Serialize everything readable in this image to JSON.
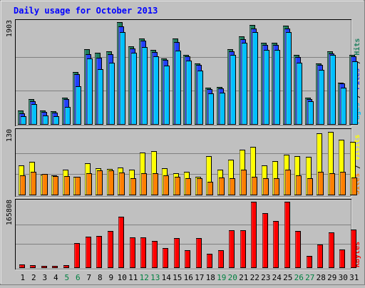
{
  "chart_data": {
    "type": "bar",
    "title": "Daily usage for October 2013",
    "categories": [
      "1",
      "2",
      "3",
      "4",
      "5",
      "6",
      "7",
      "8",
      "9",
      "10",
      "11",
      "12",
      "13",
      "14",
      "15",
      "16",
      "17",
      "18",
      "19",
      "20",
      "21",
      "22",
      "23",
      "24",
      "25",
      "26",
      "27",
      "28",
      "29",
      "30",
      "31"
    ],
    "weekend_days": [
      "5",
      "6",
      "12",
      "13",
      "19",
      "20",
      "26",
      "27"
    ],
    "panels": [
      {
        "id": "traffic",
        "axis_max_label": "1903",
        "max": 1903,
        "right_labels": [
          {
            "text": "Pages",
            "color": "#00c0ff"
          },
          {
            "text": "Files",
            "color": "#2040ff"
          },
          {
            "text": "Hits",
            "color": "#208060"
          }
        ],
        "series": [
          {
            "name": "Hits",
            "color": "#208060",
            "values": [
              270,
              470,
              270,
              250,
              500,
              980,
              1400,
              1340,
              1360,
              1903,
              1450,
              1600,
              1390,
              1230,
              1600,
              1300,
              1130,
              690,
              700,
              1400,
              1640,
              1850,
              1520,
              1520,
              1840,
              1300,
              500,
              1140,
              1360,
              780,
              1290
            ]
          },
          {
            "name": "Files",
            "color": "#2040ff",
            "values": [
              210,
              430,
              240,
              220,
              480,
              940,
              1310,
              1240,
              1310,
              1830,
              1410,
              1560,
              1350,
              1200,
              1530,
              1270,
              1110,
              660,
              670,
              1360,
              1590,
              1790,
              1480,
              1480,
              1790,
              1260,
              470,
              1110,
              1320,
              760,
              1270
            ]
          },
          {
            "name": "Pages",
            "color": "#00c0ff",
            "values": [
              160,
              380,
              170,
              160,
              330,
              710,
              1230,
              1030,
              1150,
              1720,
              1340,
              1440,
              1270,
              1100,
              1370,
              1190,
              1000,
              580,
              590,
              1300,
              1520,
              1720,
              1390,
              1390,
              1720,
              1150,
              430,
              1020,
              1300,
              690,
              1180
            ]
          }
        ]
      },
      {
        "id": "visitors",
        "axis_max_label": "130",
        "max": 130,
        "right_labels": [
          {
            "text": "Sites",
            "color": "#ff8000"
          },
          {
            "text": "Visits",
            "color": "#ffff00"
          }
        ],
        "series": [
          {
            "name": "Visits",
            "color": "#ffff00",
            "values": [
              60,
              68,
              42,
              40,
              52,
              38,
              65,
              55,
              54,
              57,
              52,
              86,
              90,
              55,
              45,
              48,
              38,
              80,
              52,
              72,
              92,
              98,
              60,
              70,
              82,
              80,
              78,
              125,
              128,
              112,
              108
            ]
          },
          {
            "name": "Sites",
            "color": "#ff8000",
            "values": [
              40,
              48,
              43,
              39,
              39,
              38,
              45,
              50,
              50,
              46,
              34,
              45,
              45,
              40,
              38,
              34,
              34,
              28,
              36,
              35,
              52,
              38,
              34,
              34,
              52,
              40,
              34,
              48,
              45,
              48,
              36
            ]
          }
        ]
      },
      {
        "id": "kbytes",
        "axis_max_label": "165808",
        "max": 165808,
        "right_labels": [
          {
            "text": "KBytes",
            "color": "#ff0000"
          }
        ],
        "series": [
          {
            "name": "KBytes",
            "color": "#ff0000",
            "values": [
              9000,
              7000,
              6000,
              6000,
              7000,
              62000,
              78000,
              80000,
              92000,
              128000,
              77000,
              76000,
              68000,
              50000,
              74000,
              44000,
              74000,
              35000,
              45000,
              94000,
              95000,
              165808,
              138000,
              118000,
              165808,
              92000,
              30000,
              59000,
              90000,
              46000,
              97000
            ]
          }
        ]
      }
    ]
  }
}
